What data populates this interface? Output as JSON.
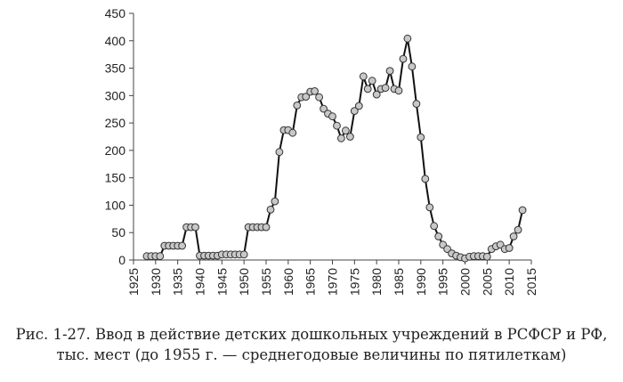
{
  "caption": {
    "line1": "Рис. 1-27. Ввод в действие детских дошкольных учреждений в РСФСР и РФ,",
    "line2": "тыс. мест (до 1955 г. — среднегодовые величины по пятилеткам)"
  },
  "chart_data": {
    "type": "line",
    "title": "",
    "xlabel": "",
    "ylabel": "",
    "xlim": [
      1925,
      2015
    ],
    "ylim": [
      0,
      450
    ],
    "x_ticks": [
      1925,
      1930,
      1935,
      1940,
      1945,
      1950,
      1955,
      1960,
      1965,
      1970,
      1975,
      1980,
      1985,
      1990,
      1995,
      2000,
      2005,
      2010,
      2015
    ],
    "y_ticks": [
      0,
      50,
      100,
      150,
      200,
      250,
      300,
      350,
      400,
      450
    ],
    "grid": false,
    "colors": {
      "line": "#111111",
      "marker_fill": "#c8c8c8",
      "marker_stroke": "#333333",
      "axis": "#444444"
    },
    "series": [
      {
        "x": [
          1928,
          1929,
          1930,
          1931,
          1932,
          1933,
          1934,
          1935,
          1936,
          1937,
          1938,
          1939,
          1940,
          1941,
          1942,
          1943,
          1944,
          1945,
          1946,
          1947,
          1948,
          1949,
          1950,
          1951,
          1952,
          1953,
          1954,
          1955,
          1956,
          1957,
          1958,
          1959,
          1960,
          1961,
          1962,
          1963,
          1964,
          1965,
          1966,
          1967,
          1968,
          1969,
          1970,
          1971,
          1972,
          1973,
          1974,
          1975,
          1976,
          1977,
          1978,
          1979,
          1980,
          1981,
          1982,
          1983,
          1984,
          1985,
          1986,
          1987,
          1988,
          1989,
          1990,
          1991,
          1992,
          1993,
          1994,
          1995,
          1996,
          1997,
          1998,
          1999,
          2000,
          2001,
          2002,
          2003,
          2004,
          2005,
          2006,
          2007,
          2008,
          2009,
          2010,
          2011,
          2012,
          2013
        ],
        "y": [
          7,
          7,
          7,
          7,
          26,
          26,
          26,
          26,
          26,
          60,
          60,
          60,
          8,
          8,
          8,
          8,
          8,
          10,
          10,
          10,
          10,
          10,
          10,
          60,
          60,
          60,
          60,
          60,
          92,
          107,
          197,
          237,
          237,
          232,
          282,
          297,
          298,
          307,
          308,
          297,
          276,
          267,
          262,
          245,
          222,
          236,
          225,
          272,
          281,
          335,
          312,
          327,
          302,
          312,
          314,
          345,
          312,
          309,
          367,
          404,
          353,
          285,
          224,
          148,
          96,
          62,
          43,
          28,
          20,
          12,
          8,
          5,
          3,
          6,
          7,
          7,
          7,
          6,
          20,
          25,
          28,
          20,
          22,
          43,
          55,
          91
        ]
      }
    ]
  }
}
